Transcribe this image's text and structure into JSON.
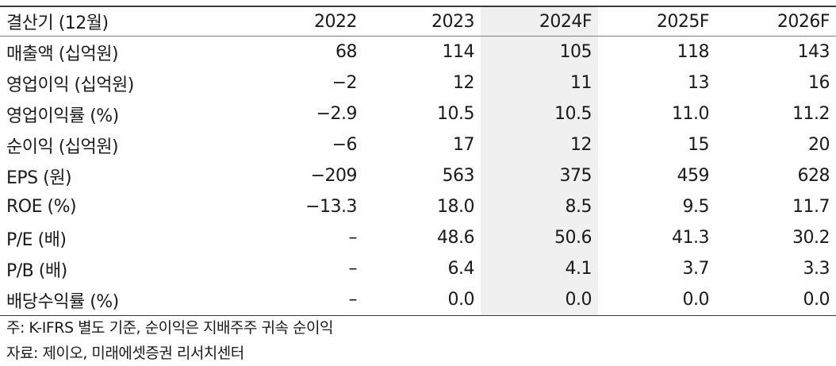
{
  "table": {
    "header": {
      "label": "결산기 (12월)",
      "years": [
        "2022",
        "2023",
        "2024F",
        "2025F",
        "2026F"
      ]
    },
    "highlight_column": "2024F",
    "rows": [
      {
        "label": "매출액 (십억원)",
        "values": [
          "68",
          "114",
          "105",
          "118",
          "143"
        ]
      },
      {
        "label": "영업이익 (십억원)",
        "values": [
          "−2",
          "12",
          "11",
          "13",
          "16"
        ]
      },
      {
        "label": "영업이익률 (%)",
        "values": [
          "−2.9",
          "10.5",
          "10.5",
          "11.0",
          "11.2"
        ]
      },
      {
        "label": "순이익 (십억원)",
        "values": [
          "−6",
          "17",
          "12",
          "15",
          "20"
        ]
      },
      {
        "label": "EPS (원)",
        "values": [
          "−209",
          "563",
          "375",
          "459",
          "628"
        ]
      },
      {
        "label": "ROE (%)",
        "values": [
          "−13.3",
          "18.0",
          "8.5",
          "9.5",
          "11.7"
        ]
      },
      {
        "label": "P/E (배)",
        "values": [
          "–",
          "48.6",
          "50.6",
          "41.3",
          "30.2"
        ]
      },
      {
        "label": "P/B (배)",
        "values": [
          "–",
          "6.4",
          "4.1",
          "3.7",
          "3.3"
        ]
      },
      {
        "label": "배당수익률 (%)",
        "values": [
          "–",
          "0.0",
          "0.0",
          "0.0",
          "0.0"
        ]
      }
    ]
  },
  "notes": {
    "note": "주: K-IFRS 별도 기준, 순이익은 지배주주 귀속 순이익",
    "source": "자료: 제이오, 미래에셋증권 리서치센터"
  },
  "colors": {
    "highlight_bg": "#f0f0f0",
    "rule": "#3a3a3a",
    "text": "#1a1a1a"
  }
}
